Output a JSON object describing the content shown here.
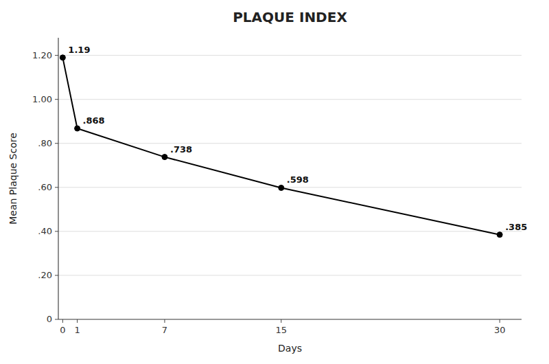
{
  "chart_data": {
    "type": "line",
    "title": "PLAQUE INDEX",
    "xlabel": "Days",
    "ylabel": "Mean Plaque Score",
    "x": [
      0,
      1,
      7,
      15,
      30
    ],
    "values": [
      1.19,
      0.868,
      0.738,
      0.598,
      0.385
    ],
    "value_labels": [
      "1.19",
      ".868",
      ".738",
      ".598",
      ".385"
    ],
    "data_labels": true,
    "color": "#000000",
    "marker": "circle",
    "xlim": [
      -0.3,
      31.5
    ],
    "ylim": [
      0,
      1.28
    ],
    "xticks": [
      0,
      1,
      7,
      15,
      30
    ],
    "yticks": [
      0,
      {
        "value": 0.2,
        "label": ".20"
      },
      {
        "value": 0.4,
        "label": ".40"
      },
      {
        "value": 0.6,
        "label": ".60"
      },
      {
        "value": 0.8,
        "label": ".80"
      },
      {
        "value": 1.0,
        "label": "1.00"
      },
      {
        "value": 1.2,
        "label": "1.20"
      }
    ],
    "grid": true
  }
}
